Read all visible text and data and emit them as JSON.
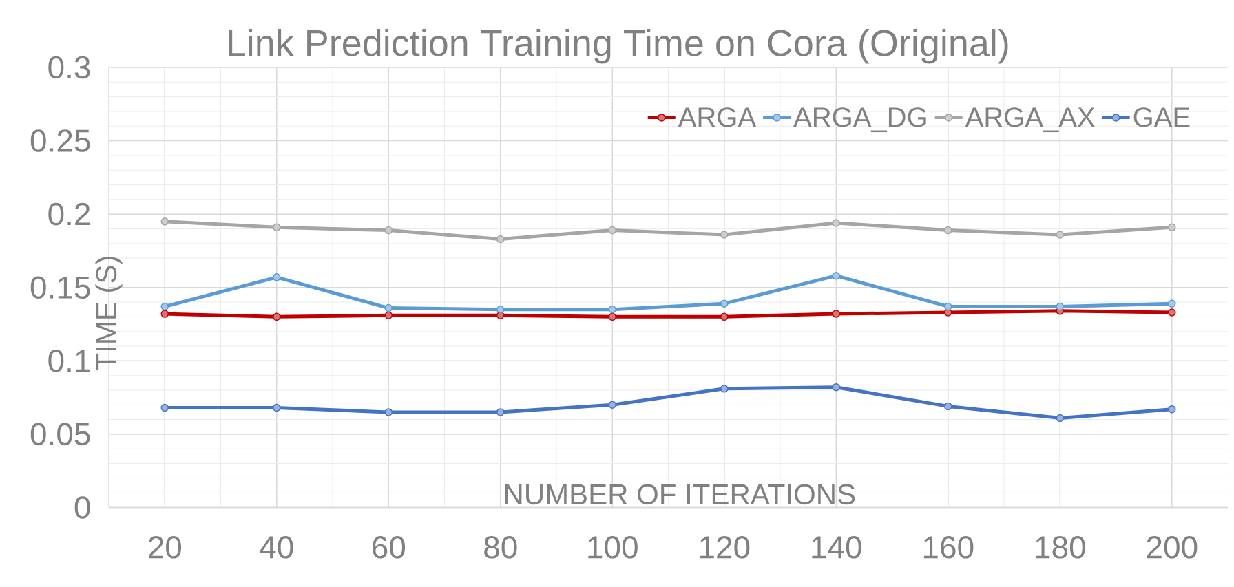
{
  "chart_data": {
    "type": "line",
    "title": "Link Prediction Training Time on Cora (Original)",
    "xlabel": "NUMBER OF ITERATIONS",
    "ylabel": "TIME (S)",
    "categories": [
      "20",
      "40",
      "60",
      "80",
      "100",
      "120",
      "140",
      "160",
      "180",
      "200"
    ],
    "series": [
      {
        "name": "ARGA",
        "color": "#c00000",
        "values": [
          0.132,
          0.13,
          0.131,
          0.131,
          0.13,
          0.13,
          0.132,
          0.133,
          0.134,
          0.133
        ]
      },
      {
        "name": "ARGA_DG",
        "color": "#5b9bd5",
        "values": [
          0.137,
          0.157,
          0.136,
          0.135,
          0.135,
          0.139,
          0.158,
          0.137,
          0.137,
          0.139
        ]
      },
      {
        "name": "ARGA_AX",
        "color": "#a5a5a5",
        "values": [
          0.195,
          0.191,
          0.189,
          0.183,
          0.189,
          0.186,
          0.194,
          0.189,
          0.186,
          0.191
        ]
      },
      {
        "name": "GAE",
        "color": "#4472c4",
        "values": [
          0.068,
          0.068,
          0.065,
          0.065,
          0.07,
          0.081,
          0.082,
          0.069,
          0.061,
          0.067
        ]
      }
    ],
    "ylim": [
      0,
      0.3
    ],
    "yticks": [
      0,
      0.05,
      0.1,
      0.15,
      0.2,
      0.25,
      0.3
    ],
    "grid": true,
    "legend": "top right",
    "marker": "circle"
  }
}
